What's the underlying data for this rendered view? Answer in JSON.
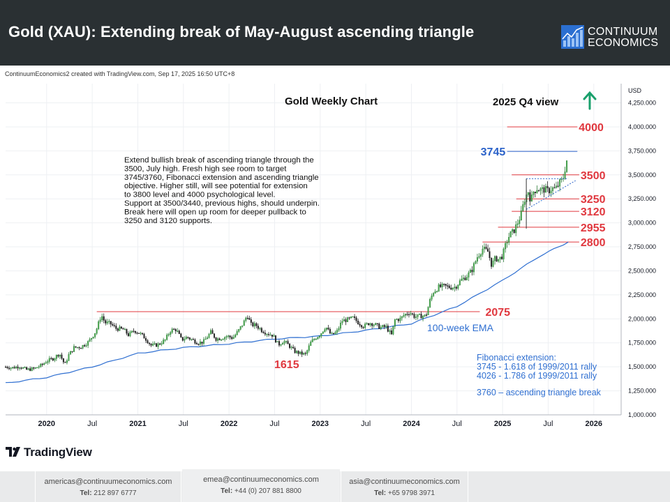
{
  "header": {
    "title": "Gold (XAU): Extending break of May-August ascending triangle",
    "brand_line1": "CONTINUUM",
    "brand_line2": "ECONOMICS"
  },
  "credit": "ContinuumEconomics2 created with TradingView.com, Sep 17, 2025 16:50 UTC+8",
  "tradingview_label": "TradingView",
  "colors": {
    "header_bg": "#2a3033",
    "support_red": "#e0383f",
    "target_blue": "#2b62c9",
    "ema_blue": "#2f6fd1",
    "up_arrow": "#1aa06c"
  },
  "footer": {
    "contacts": [
      {
        "email": "americas@continuumeconomics.com",
        "tel_label": "Tel:",
        "tel": "212 897 6777"
      },
      {
        "email": "emea@continuumeconomics.com",
        "tel_label": "Tel:",
        "tel": "+44 (0) 207 881 8800"
      },
      {
        "email": "asia@continuumeconomics.com",
        "tel_label": "Tel:",
        "tel": "+65 9798 3971"
      }
    ]
  },
  "chart_data": {
    "type": "line",
    "title": "Gold Weekly Chart",
    "view_label": "2025 Q4 view",
    "y_unit": "USD",
    "xlim": [
      2019.55,
      2026.3
    ],
    "ylim": [
      1000,
      4450
    ],
    "y_ticks": [
      "1,000.000",
      "1,250.000",
      "1,500.000",
      "1,750.000",
      "2,000.000",
      "2,250.000",
      "2,500.000",
      "2,750.000",
      "3,000.000",
      "3,250.000",
      "3,500.000",
      "3,750.000",
      "4,000.000",
      "4,250.000"
    ],
    "y_tick_values": [
      1000,
      1250,
      1500,
      1750,
      2000,
      2250,
      2500,
      2750,
      3000,
      3250,
      3500,
      3750,
      4000,
      4250
    ],
    "x_ticks": [
      {
        "label": "2020",
        "x": 2020.0,
        "bold": true
      },
      {
        "label": "Jul",
        "x": 2020.5,
        "bold": false
      },
      {
        "label": "2021",
        "x": 2021.0,
        "bold": true
      },
      {
        "label": "Jul",
        "x": 2021.5,
        "bold": false
      },
      {
        "label": "2022",
        "x": 2022.0,
        "bold": true
      },
      {
        "label": "Jul",
        "x": 2022.5,
        "bold": false
      },
      {
        "label": "2023",
        "x": 2023.0,
        "bold": true
      },
      {
        "label": "Jul",
        "x": 2023.5,
        "bold": false
      },
      {
        "label": "2024",
        "x": 2024.0,
        "bold": true
      },
      {
        "label": "Jul",
        "x": 2024.5,
        "bold": false
      },
      {
        "label": "2025",
        "x": 2025.0,
        "bold": true
      },
      {
        "label": "Jul",
        "x": 2025.5,
        "bold": false
      },
      {
        "label": "2026",
        "x": 2026.0,
        "bold": true
      }
    ],
    "series": [
      {
        "name": "",
        "style": "candles",
        "points": [
          [
            2019.55,
            1500
          ],
          [
            2019.62,
            1490
          ],
          [
            2019.7,
            1505
          ],
          [
            2019.78,
            1470
          ],
          [
            2019.86,
            1480
          ],
          [
            2019.95,
            1520
          ],
          [
            2020.0,
            1560
          ],
          [
            2020.08,
            1590
          ],
          [
            2020.14,
            1640
          ],
          [
            2020.2,
            1520
          ],
          [
            2020.24,
            1620
          ],
          [
            2020.3,
            1700
          ],
          [
            2020.38,
            1710
          ],
          [
            2020.46,
            1760
          ],
          [
            2020.54,
            1870
          ],
          [
            2020.6,
            2040
          ],
          [
            2020.64,
            1960
          ],
          [
            2020.7,
            1950
          ],
          [
            2020.76,
            1900
          ],
          [
            2020.84,
            1890
          ],
          [
            2020.9,
            1830
          ],
          [
            2020.96,
            1880
          ],
          [
            2021.02,
            1850
          ],
          [
            2021.08,
            1800
          ],
          [
            2021.15,
            1720
          ],
          [
            2021.22,
            1730
          ],
          [
            2021.3,
            1780
          ],
          [
            2021.36,
            1880
          ],
          [
            2021.42,
            1890
          ],
          [
            2021.48,
            1780
          ],
          [
            2021.54,
            1810
          ],
          [
            2021.6,
            1780
          ],
          [
            2021.66,
            1750
          ],
          [
            2021.72,
            1760
          ],
          [
            2021.8,
            1860
          ],
          [
            2021.86,
            1790
          ],
          [
            2021.92,
            1800
          ],
          [
            2021.98,
            1820
          ],
          [
            2022.04,
            1800
          ],
          [
            2022.1,
            1870
          ],
          [
            2022.16,
            1960
          ],
          [
            2022.2,
            2040
          ],
          [
            2022.24,
            1940
          ],
          [
            2022.3,
            1930
          ],
          [
            2022.36,
            1880
          ],
          [
            2022.42,
            1850
          ],
          [
            2022.48,
            1830
          ],
          [
            2022.54,
            1730
          ],
          [
            2022.6,
            1770
          ],
          [
            2022.66,
            1720
          ],
          [
            2022.72,
            1660
          ],
          [
            2022.78,
            1640
          ],
          [
            2022.84,
            1630
          ],
          [
            2022.9,
            1760
          ],
          [
            2022.96,
            1810
          ],
          [
            2023.0,
            1840
          ],
          [
            2023.06,
            1920
          ],
          [
            2023.12,
            1830
          ],
          [
            2023.18,
            1860
          ],
          [
            2023.24,
            1980
          ],
          [
            2023.3,
            1990
          ],
          [
            2023.36,
            2010
          ],
          [
            2023.42,
            1960
          ],
          [
            2023.48,
            1920
          ],
          [
            2023.54,
            1960
          ],
          [
            2023.6,
            1940
          ],
          [
            2023.66,
            1910
          ],
          [
            2023.72,
            1920
          ],
          [
            2023.78,
            1830
          ],
          [
            2023.82,
            1990
          ],
          [
            2023.88,
            2000
          ],
          [
            2023.92,
            2040
          ],
          [
            2023.98,
            2070
          ],
          [
            2024.04,
            2020
          ],
          [
            2024.1,
            2030
          ],
          [
            2024.16,
            2030
          ],
          [
            2024.2,
            2180
          ],
          [
            2024.24,
            2280
          ],
          [
            2024.3,
            2330
          ],
          [
            2024.36,
            2340
          ],
          [
            2024.42,
            2330
          ],
          [
            2024.48,
            2330
          ],
          [
            2024.54,
            2400
          ],
          [
            2024.6,
            2440
          ],
          [
            2024.66,
            2500
          ],
          [
            2024.72,
            2640
          ],
          [
            2024.78,
            2730
          ],
          [
            2024.84,
            2700
          ],
          [
            2024.88,
            2560
          ],
          [
            2024.92,
            2630
          ],
          [
            2024.96,
            2620
          ],
          [
            2025.0,
            2660
          ],
          [
            2025.04,
            2790
          ],
          [
            2025.08,
            2880
          ],
          [
            2025.12,
            2910
          ],
          [
            2025.16,
            2990
          ],
          [
            2025.2,
            3080
          ],
          [
            2025.24,
            3240
          ],
          [
            2025.28,
            3330
          ],
          [
            2025.31,
            3230
          ],
          [
            2025.34,
            3330
          ],
          [
            2025.38,
            3360
          ],
          [
            2025.42,
            3340
          ],
          [
            2025.46,
            3350
          ],
          [
            2025.5,
            3330
          ],
          [
            2025.54,
            3360
          ],
          [
            2025.58,
            3350
          ],
          [
            2025.62,
            3410
          ],
          [
            2025.66,
            3450
          ],
          [
            2025.68,
            3540
          ],
          [
            2025.7,
            3640
          ],
          [
            2025.72,
            3690
          ]
        ]
      },
      {
        "name": "100-week EMA",
        "style": "line",
        "points": [
          [
            2019.55,
            1330
          ],
          [
            2020.0,
            1390
          ],
          [
            2020.5,
            1500
          ],
          [
            2021.0,
            1640
          ],
          [
            2021.5,
            1700
          ],
          [
            2022.0,
            1740
          ],
          [
            2022.5,
            1790
          ],
          [
            2023.0,
            1820
          ],
          [
            2023.5,
            1880
          ],
          [
            2024.0,
            1950
          ],
          [
            2024.5,
            2130
          ],
          [
            2025.0,
            2400
          ],
          [
            2025.4,
            2650
          ],
          [
            2025.72,
            2800
          ]
        ]
      }
    ],
    "horizontal_levels": [
      {
        "value": 4000,
        "label": "4000",
        "x_from": 2025.05,
        "color": "red"
      },
      {
        "value": 3745,
        "label": "3745",
        "x_from": 2025.05,
        "color": "blue"
      },
      {
        "value": 3500,
        "label": "3500",
        "x_from": 2025.1,
        "color": "red"
      },
      {
        "value": 3250,
        "label": "3250",
        "x_from": 2025.15,
        "color": "red"
      },
      {
        "value": 3120,
        "label": "3120",
        "x_from": 2025.1,
        "color": "red"
      },
      {
        "value": 2955,
        "label": "2955",
        "x_from": 2024.95,
        "color": "red"
      },
      {
        "value": 2800,
        "label": "2800",
        "x_from": 2024.78,
        "color": "red"
      },
      {
        "value": 2075,
        "label": "2075",
        "x_from": 2020.55,
        "color": "red"
      }
    ],
    "triangle": {
      "resistance": 3500,
      "x_start": 2025.26,
      "x_end": 2025.8,
      "support_from": 3140,
      "support_to": 3440
    },
    "annotations": {
      "commentary": [
        "Extend bullish break of ascending triangle through the",
        "3500, July high. Fresh high see room to target",
        "3745/3760, Fibonacci extension and ascending triangle",
        "objective. Higher still, will see potential for extension",
        "to 3800 level and 4000 psychological level.",
        "Support at 3500/3440, previous highs, should underpin.",
        "Break here will open up room for deeper pullback to",
        "3250 and 3120 supports."
      ],
      "low_label": "1615",
      "ema_label": "100-week EMA",
      "fib_title": "Fibonacci extension:",
      "fib_line1": "3745 - 1.618 of 1999/2011 rally",
      "fib_line2": "4026 - 1.786 of 1999/2011 rally",
      "fib_line3": "3760 – ascending triangle break"
    }
  }
}
